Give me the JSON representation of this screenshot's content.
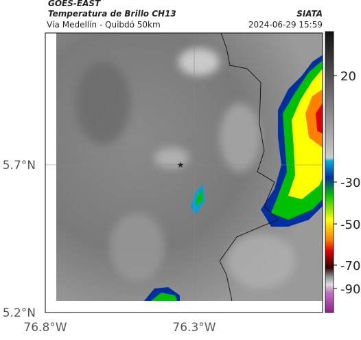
{
  "header": {
    "title": "GOES-EAST",
    "subtitle": "Temperatura de Brillo CH13",
    "source": "SIATA",
    "location": "Vía Medellín - Quibdó 50km",
    "datetime": "2024-06-29 15:59"
  },
  "axes": {
    "lat_ticks": [
      "5.7°N",
      "5.2°N"
    ],
    "lon_ticks": [
      "76.8°W",
      "76.3°W"
    ]
  },
  "colorbar": {
    "ticks": [
      20,
      -30,
      -50,
      -70,
      -90
    ]
  }
}
